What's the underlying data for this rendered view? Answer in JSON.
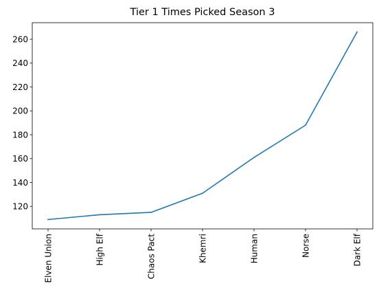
{
  "chart_data": {
    "type": "line",
    "title": "Tier 1 Times Picked Season 3",
    "xlabel": "",
    "ylabel": "",
    "categories": [
      "Elven Union",
      "High Elf",
      "Chaos Pact",
      "Khemri",
      "Human",
      "Norse",
      "Dark Elf"
    ],
    "series": [
      {
        "values": [
          109,
          113,
          115,
          131,
          161,
          188,
          266
        ]
      }
    ],
    "yticks": [
      120,
      140,
      160,
      180,
      200,
      220,
      240,
      260
    ],
    "ylim": [
      101.15,
      273.85
    ],
    "grid": false,
    "line_color": "#1f77b4"
  }
}
